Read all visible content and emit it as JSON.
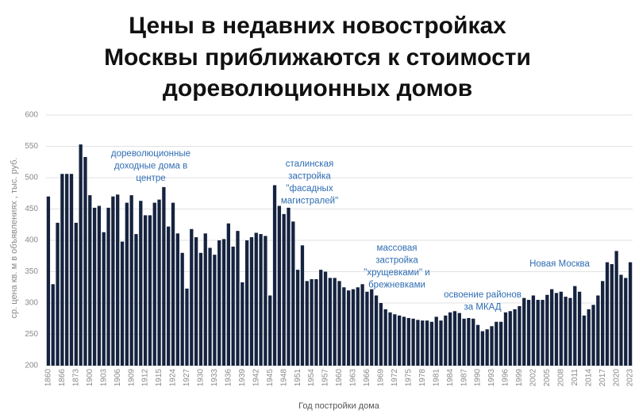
{
  "chart_data": {
    "type": "bar",
    "title": [
      "Цены в недавних новостройках",
      "Москвы приближаются к стоимости",
      "дореволюционных домов"
    ],
    "y_label": "ср. цена кв. м в объявлениях , тыс. руб.",
    "x_label": "Год постройки дома",
    "annotations": [
      [
        "дореволюционные",
        "доходные дома в",
        "центре"
      ],
      [
        "сталинская",
        "застройка",
        "\"фасадных",
        "магистралей\""
      ],
      [
        "массовая",
        "застройка",
        "\"хрущевками\" и",
        "брежневками"
      ],
      [
        "освоение районов",
        "за МКАД"
      ],
      [
        "Новая Москва"
      ]
    ],
    "color": "#15233f",
    "grid": true,
    "ylim": [
      200,
      600
    ],
    "yticks": [
      200,
      250,
      300,
      350,
      400,
      450,
      500,
      550,
      600
    ],
    "categories": [
      "1860",
      null,
      null,
      "1866",
      null,
      null,
      "1873",
      null,
      null,
      "1900",
      null,
      null,
      "1903",
      null,
      null,
      "1906",
      null,
      null,
      "1909",
      null,
      null,
      "1912",
      null,
      null,
      "1915",
      null,
      null,
      "1924",
      null,
      null,
      "1927",
      null,
      null,
      "1930",
      null,
      null,
      "1933",
      null,
      null,
      "1936",
      null,
      null,
      "1939",
      null,
      null,
      "1942",
      null,
      null,
      "1945",
      null,
      null,
      "1948",
      null,
      null,
      "1951",
      null,
      null,
      "1954",
      null,
      null,
      "1957",
      null,
      null,
      "1960",
      null,
      null,
      "1963",
      null,
      null,
      "1966",
      null,
      null,
      "1969",
      null,
      null,
      "1972",
      null,
      null,
      "1975",
      null,
      null,
      "1978",
      null,
      null,
      "1981",
      null,
      null,
      "1984",
      null,
      null,
      "1987",
      null,
      null,
      "1990",
      null,
      null,
      "1993",
      null,
      null,
      "1996",
      null,
      null,
      "1999",
      null,
      null,
      "2002",
      null,
      null,
      "2005",
      null,
      null,
      "2008",
      null,
      null,
      "2011",
      null,
      null,
      "2014",
      null,
      null,
      "2017",
      null,
      null,
      "2020",
      null,
      null,
      "2023"
    ],
    "values": [
      470,
      330,
      428,
      506,
      506,
      506,
      428,
      553,
      533,
      472,
      452,
      455,
      413,
      452,
      470,
      473,
      398,
      460,
      472,
      410,
      463,
      440,
      440,
      460,
      465,
      485,
      422,
      460,
      411,
      380,
      323,
      418,
      405,
      380,
      411,
      388,
      377,
      400,
      402,
      427,
      390,
      415,
      333,
      400,
      405,
      412,
      410,
      407,
      312,
      488,
      455,
      442,
      452,
      430,
      353,
      392,
      335,
      338,
      338,
      353,
      350,
      340,
      340,
      335,
      325,
      320,
      322,
      325,
      330,
      318,
      322,
      312,
      300,
      290,
      285,
      282,
      280,
      278,
      276,
      275,
      273,
      272,
      272,
      270,
      278,
      272,
      280,
      285,
      287,
      284,
      275,
      276,
      275,
      265,
      255,
      258,
      263,
      270,
      270,
      285,
      287,
      290,
      295,
      308,
      305,
      312,
      305,
      305,
      313,
      322,
      316,
      318,
      310,
      308,
      327,
      318,
      280,
      290,
      297,
      312,
      335,
      365,
      362,
      383,
      345,
      340,
      365
    ]
  }
}
